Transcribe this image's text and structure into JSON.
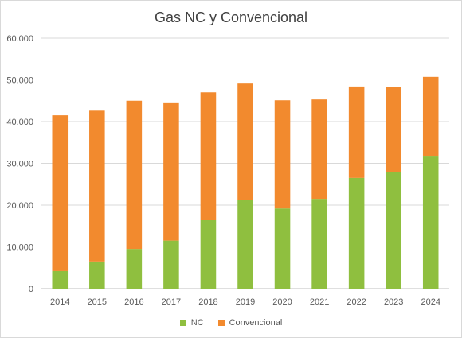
{
  "chart_data": {
    "type": "bar",
    "stacked": true,
    "title": "Gas NC y Convencional",
    "xlabel": "",
    "ylabel": "",
    "ylim": [
      0,
      60000
    ],
    "yticks": [
      "0",
      "10.000",
      "20.000",
      "30.000",
      "40.000",
      "50.000",
      "60.000"
    ],
    "ytick_values": [
      0,
      10000,
      20000,
      30000,
      40000,
      50000,
      60000
    ],
    "grid": true,
    "legend_position": "bottom",
    "categories": [
      "2014",
      "2015",
      "2016",
      "2017",
      "2018",
      "2019",
      "2020",
      "2021",
      "2022",
      "2023",
      "2024"
    ],
    "series": [
      {
        "name": "NC",
        "color": "#8fbf3f",
        "values": [
          4200,
          6500,
          9500,
          11500,
          16500,
          21200,
          19200,
          21500,
          26500,
          28000,
          31800
        ]
      },
      {
        "name": "Convencional",
        "color": "#f28a2e",
        "values": [
          37300,
          36300,
          35500,
          33100,
          30500,
          28100,
          25900,
          23800,
          21900,
          20200,
          18900
        ]
      }
    ]
  }
}
